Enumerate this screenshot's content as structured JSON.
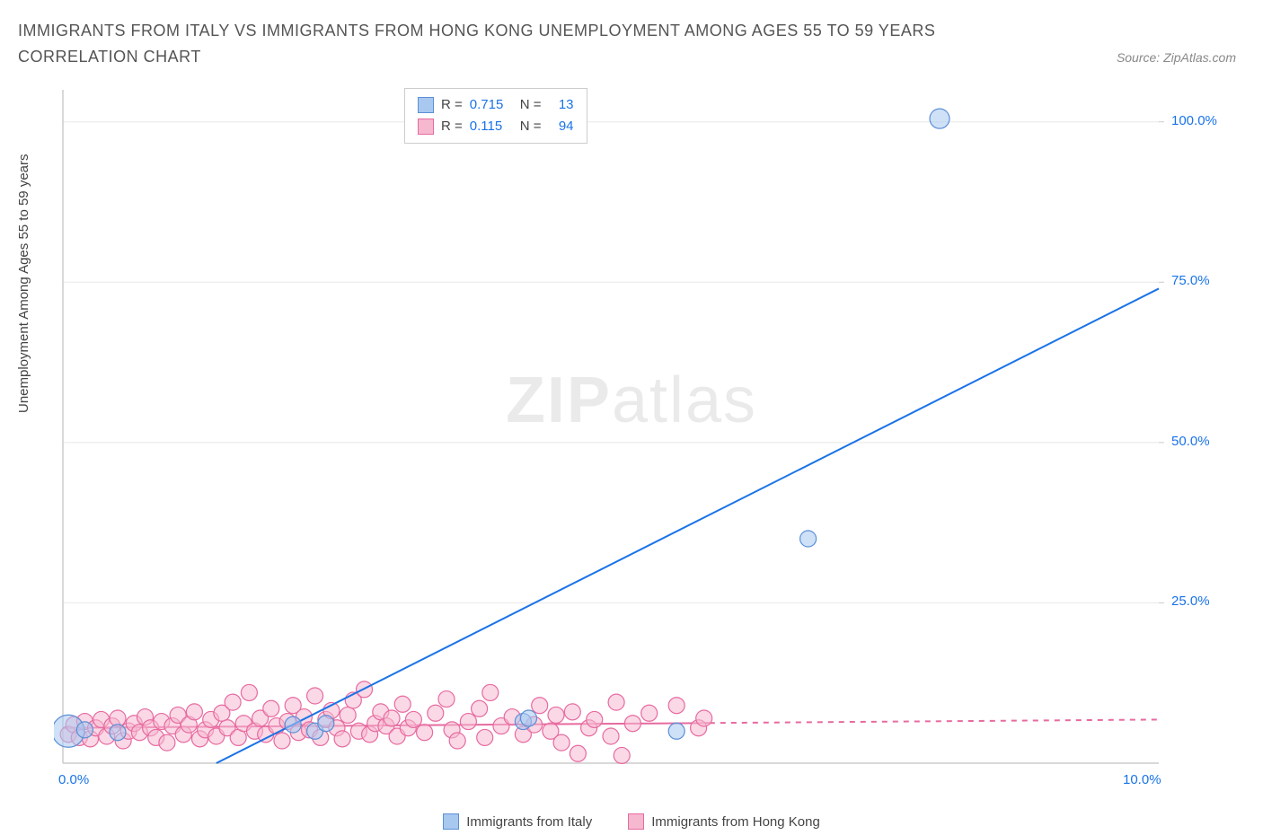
{
  "title": "IMMIGRANTS FROM ITALY VS IMMIGRANTS FROM HONG KONG UNEMPLOYMENT AMONG AGES 55 TO 59 YEARS CORRELATION CHART",
  "source": "Source: ZipAtlas.com",
  "watermark_a": "ZIP",
  "watermark_b": "atlas",
  "ylabel": "Unemployment Among Ages 55 to 59 years",
  "chart": {
    "type": "scatter-with-regression",
    "background_color": "#ffffff",
    "grid_color": "#e8e8e8",
    "axis_color": "#cccccc",
    "tick_label_color": "#1a73e8",
    "xlim": [
      0,
      10
    ],
    "ylim": [
      0,
      105
    ],
    "xticks": [
      0,
      10
    ],
    "xtick_labels": [
      "0.0%",
      "10.0%"
    ],
    "yticks": [
      25,
      50,
      75,
      100
    ],
    "ytick_labels": [
      "25.0%",
      "50.0%",
      "75.0%",
      "100.0%"
    ],
    "series": [
      {
        "name": "Immigrants from Italy",
        "color_fill": "#a8c8f0",
        "color_stroke": "#5b8fd6",
        "fill_opacity": 0.55,
        "marker_radius": 9,
        "R": "0.715",
        "N": "13",
        "regression": {
          "x1": 1.4,
          "y1": 0,
          "x2": 10.0,
          "y2": 74,
          "color": "#1a73e8",
          "width": 2,
          "dash_from_x": null
        },
        "points": [
          {
            "x": 0.05,
            "y": 5,
            "r": 18
          },
          {
            "x": 0.2,
            "y": 5.2
          },
          {
            "x": 0.5,
            "y": 4.8
          },
          {
            "x": 2.1,
            "y": 6
          },
          {
            "x": 2.3,
            "y": 5
          },
          {
            "x": 2.4,
            "y": 6.2
          },
          {
            "x": 4.2,
            "y": 6.5
          },
          {
            "x": 4.25,
            "y": 7
          },
          {
            "x": 5.6,
            "y": 5
          },
          {
            "x": 6.8,
            "y": 35
          },
          {
            "x": 8.0,
            "y": 100.5,
            "r": 11
          }
        ]
      },
      {
        "name": "Immigrants from Hong Kong",
        "color_fill": "#f6b8cf",
        "color_stroke": "#e76aa0",
        "fill_opacity": 0.55,
        "marker_radius": 9,
        "R": "0.115",
        "N": "94",
        "regression": {
          "x1": 0,
          "y1": 5.5,
          "x2": 10.0,
          "y2": 6.8,
          "color": "#e76aa0",
          "width": 2,
          "dash_from_x": 5.9
        },
        "points": [
          {
            "x": 0.05,
            "y": 4.5
          },
          {
            "x": 0.1,
            "y": 6
          },
          {
            "x": 0.15,
            "y": 4
          },
          {
            "x": 0.2,
            "y": 6.5
          },
          {
            "x": 0.25,
            "y": 3.8
          },
          {
            "x": 0.3,
            "y": 5.5
          },
          {
            "x": 0.35,
            "y": 6.8
          },
          {
            "x": 0.4,
            "y": 4.2
          },
          {
            "x": 0.45,
            "y": 5.8
          },
          {
            "x": 0.5,
            "y": 7
          },
          {
            "x": 0.55,
            "y": 3.5
          },
          {
            "x": 0.6,
            "y": 5
          },
          {
            "x": 0.65,
            "y": 6.2
          },
          {
            "x": 0.7,
            "y": 4.8
          },
          {
            "x": 0.75,
            "y": 7.2
          },
          {
            "x": 0.8,
            "y": 5.5
          },
          {
            "x": 0.85,
            "y": 4
          },
          {
            "x": 0.9,
            "y": 6.5
          },
          {
            "x": 0.95,
            "y": 3.2
          },
          {
            "x": 1.0,
            "y": 5.8
          },
          {
            "x": 1.05,
            "y": 7.5
          },
          {
            "x": 1.1,
            "y": 4.5
          },
          {
            "x": 1.15,
            "y": 6
          },
          {
            "x": 1.2,
            "y": 8
          },
          {
            "x": 1.25,
            "y": 3.8
          },
          {
            "x": 1.3,
            "y": 5.2
          },
          {
            "x": 1.35,
            "y": 6.8
          },
          {
            "x": 1.4,
            "y": 4.2
          },
          {
            "x": 1.45,
            "y": 7.8
          },
          {
            "x": 1.5,
            "y": 5.5
          },
          {
            "x": 1.55,
            "y": 9.5
          },
          {
            "x": 1.6,
            "y": 4
          },
          {
            "x": 1.65,
            "y": 6.2
          },
          {
            "x": 1.7,
            "y": 11
          },
          {
            "x": 1.75,
            "y": 5
          },
          {
            "x": 1.8,
            "y": 7
          },
          {
            "x": 1.85,
            "y": 4.5
          },
          {
            "x": 1.9,
            "y": 8.5
          },
          {
            "x": 1.95,
            "y": 5.8
          },
          {
            "x": 2.0,
            "y": 3.5
          },
          {
            "x": 2.05,
            "y": 6.5
          },
          {
            "x": 2.1,
            "y": 9
          },
          {
            "x": 2.15,
            "y": 4.8
          },
          {
            "x": 2.2,
            "y": 7.2
          },
          {
            "x": 2.25,
            "y": 5.2
          },
          {
            "x": 2.3,
            "y": 10.5
          },
          {
            "x": 2.35,
            "y": 4
          },
          {
            "x": 2.4,
            "y": 6.8
          },
          {
            "x": 2.45,
            "y": 8.2
          },
          {
            "x": 2.5,
            "y": 5.5
          },
          {
            "x": 2.55,
            "y": 3.8
          },
          {
            "x": 2.6,
            "y": 7.5
          },
          {
            "x": 2.65,
            "y": 9.8
          },
          {
            "x": 2.7,
            "y": 5
          },
          {
            "x": 2.75,
            "y": 11.5
          },
          {
            "x": 2.8,
            "y": 4.5
          },
          {
            "x": 2.85,
            "y": 6.2
          },
          {
            "x": 2.9,
            "y": 8
          },
          {
            "x": 2.95,
            "y": 5.8
          },
          {
            "x": 3.0,
            "y": 7
          },
          {
            "x": 3.05,
            "y": 4.2
          },
          {
            "x": 3.1,
            "y": 9.2
          },
          {
            "x": 3.15,
            "y": 5.5
          },
          {
            "x": 3.2,
            "y": 6.8
          },
          {
            "x": 3.3,
            "y": 4.8
          },
          {
            "x": 3.4,
            "y": 7.8
          },
          {
            "x": 3.5,
            "y": 10
          },
          {
            "x": 3.55,
            "y": 5.2
          },
          {
            "x": 3.6,
            "y": 3.5
          },
          {
            "x": 3.7,
            "y": 6.5
          },
          {
            "x": 3.8,
            "y": 8.5
          },
          {
            "x": 3.85,
            "y": 4
          },
          {
            "x": 3.9,
            "y": 11
          },
          {
            "x": 4.0,
            "y": 5.8
          },
          {
            "x": 4.1,
            "y": 7.2
          },
          {
            "x": 4.2,
            "y": 4.5
          },
          {
            "x": 4.3,
            "y": 6
          },
          {
            "x": 4.35,
            "y": 9
          },
          {
            "x": 4.45,
            "y": 5
          },
          {
            "x": 4.5,
            "y": 7.5
          },
          {
            "x": 4.55,
            "y": 3.2
          },
          {
            "x": 4.65,
            "y": 8
          },
          {
            "x": 4.7,
            "y": 1.5
          },
          {
            "x": 4.8,
            "y": 5.5
          },
          {
            "x": 4.85,
            "y": 6.8
          },
          {
            "x": 5.0,
            "y": 4.2
          },
          {
            "x": 5.05,
            "y": 9.5
          },
          {
            "x": 5.1,
            "y": 1.2
          },
          {
            "x": 5.2,
            "y": 6.2
          },
          {
            "x": 5.35,
            "y": 7.8
          },
          {
            "x": 5.6,
            "y": 9
          },
          {
            "x": 5.8,
            "y": 5.5
          },
          {
            "x": 5.85,
            "y": 7
          }
        ]
      }
    ]
  },
  "legend_labels": {
    "R_label": "R =",
    "N_label": "N ="
  },
  "bottom_legend": [
    {
      "label": "Immigrants from Italy",
      "fill": "#a8c8f0",
      "stroke": "#5b8fd6"
    },
    {
      "label": "Immigrants from Hong Kong",
      "fill": "#f6b8cf",
      "stroke": "#e76aa0"
    }
  ]
}
